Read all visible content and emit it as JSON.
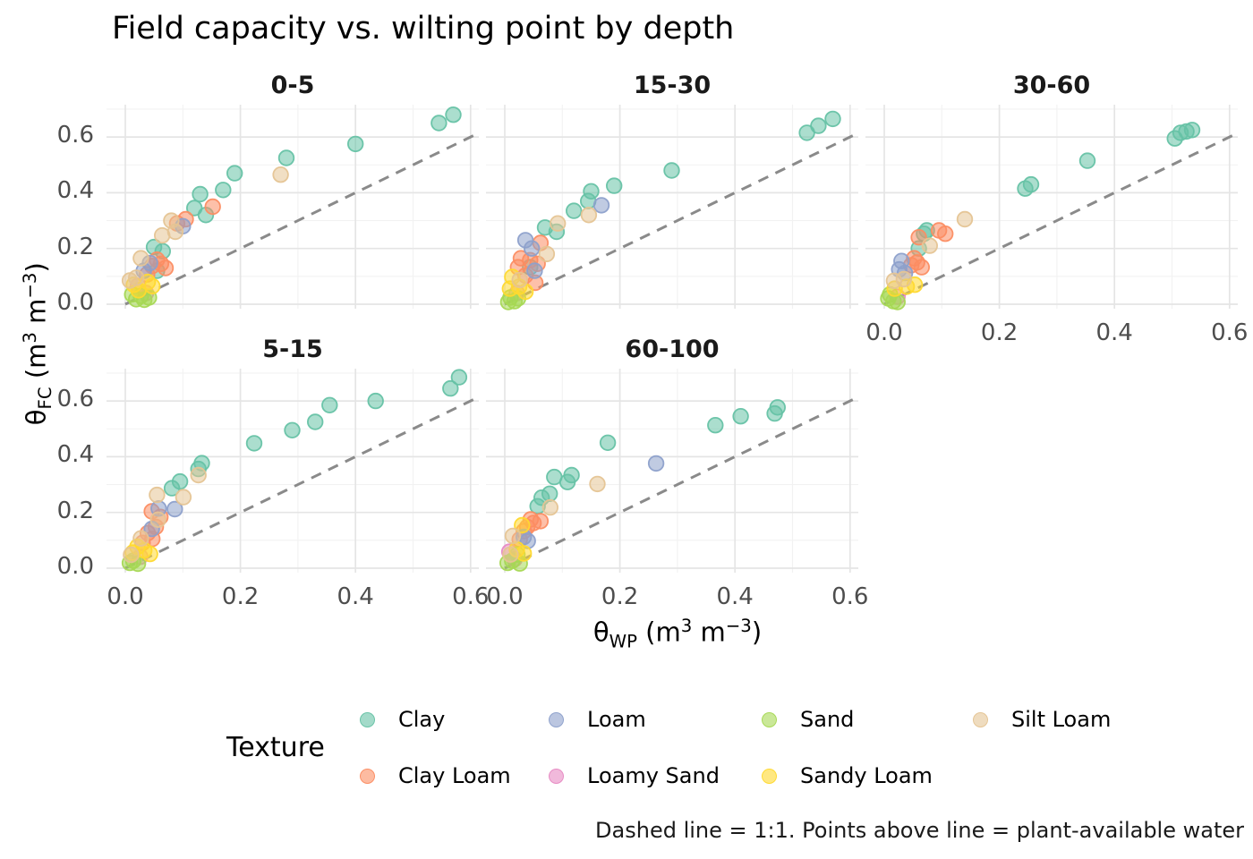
{
  "title": "Field capacity vs. wilting point by depth",
  "caption": "Dashed line = 1:1. Points above line = plant-available water",
  "axes": {
    "x": {
      "symbol": "θ",
      "subscript": "WP",
      "unit_pre": " (m",
      "sup1": "3",
      "unit_mid": " m",
      "sup2": "−3",
      "unit_post": ")",
      "tick_labels": [
        "0.0",
        "0.2",
        "0.4",
        "0.6"
      ],
      "tick_values": [
        0,
        0.2,
        0.4,
        0.6
      ]
    },
    "y": {
      "symbol": "θ",
      "subscript": "FC",
      "unit_pre": " (m",
      "sup1": "3",
      "unit_mid": " m",
      "sup2": "−3",
      "unit_post": ")",
      "tick_labels": [
        "0.0",
        "0.2",
        "0.4",
        "0.6"
      ],
      "tick_values": [
        0,
        0.2,
        0.4,
        0.6
      ]
    }
  },
  "legend": {
    "title": "Texture",
    "rows": [
      [
        "Clay",
        "Loam",
        "Sand",
        "Silt Loam"
      ],
      [
        "Clay Loam",
        "Loamy Sand",
        "Sandy Loam"
      ]
    ]
  },
  "chart_data": {
    "type": "scatter",
    "title": "Field capacity vs. wilting point by depth",
    "xlabel": "θWP (m3 m−3)",
    "ylabel": "θFC (m3 m−3)",
    "facet_variable": "depth",
    "facets": [
      "0-5",
      "15-30",
      "30-60",
      "5-15",
      "60-100"
    ],
    "xlim": [
      -0.033,
      0.614
    ],
    "ylim": [
      -0.016,
      0.715
    ],
    "grid": "on",
    "legend_position": "bottom",
    "reference_line": {
      "type": "identity 1:1",
      "style": "dashed",
      "color": "#8a8a8a"
    },
    "point_alpha": 0.55,
    "textures": [
      {
        "name": "Clay",
        "color": "#66C2A5"
      },
      {
        "name": "Clay Loam",
        "color": "#FC8D62"
      },
      {
        "name": "Loam",
        "color": "#8DA0CB"
      },
      {
        "name": "Loamy Sand",
        "color": "#E78AC3"
      },
      {
        "name": "Sand",
        "color": "#A6D854"
      },
      {
        "name": "Sandy Loam",
        "color": "#FFD92F"
      },
      {
        "name": "Silt Loam",
        "color": "#E5C494"
      }
    ],
    "panels": [
      {
        "label": "0-5",
        "points": {
          "Clay": [
            [
              0.57,
              0.68
            ],
            [
              0.545,
              0.65
            ],
            [
              0.4,
              0.575
            ],
            [
              0.28,
              0.525
            ],
            [
              0.19,
              0.47
            ],
            [
              0.17,
              0.41
            ],
            [
              0.13,
              0.395
            ],
            [
              0.12,
              0.345
            ],
            [
              0.14,
              0.32
            ],
            [
              0.05,
              0.205
            ],
            [
              0.065,
              0.19
            ],
            [
              0.055,
              0.12
            ]
          ],
          "Clay Loam": [
            [
              0.152,
              0.35
            ],
            [
              0.105,
              0.305
            ],
            [
              0.09,
              0.29
            ],
            [
              0.055,
              0.16
            ],
            [
              0.062,
              0.145
            ],
            [
              0.047,
              0.137
            ],
            [
              0.07,
              0.13
            ],
            [
              0.038,
              0.107
            ]
          ],
          "Loam": [
            [
              0.1,
              0.28
            ],
            [
              0.043,
              0.148
            ],
            [
              0.032,
              0.12
            ]
          ],
          "Loamy Sand": [
            [
              0.022,
              0.066
            ],
            [
              0.036,
              0.04
            ]
          ],
          "Sand": [
            [
              0.027,
              0.03
            ],
            [
              0.019,
              0.018
            ],
            [
              0.012,
              0.035
            ],
            [
              0.033,
              0.016
            ],
            [
              0.041,
              0.024
            ]
          ],
          "Sandy Loam": [
            [
              0.039,
              0.08
            ],
            [
              0.023,
              0.05
            ],
            [
              0.047,
              0.065
            ],
            [
              0.015,
              0.07
            ]
          ],
          "Silt Loam": [
            [
              0.27,
              0.465
            ],
            [
              0.08,
              0.3
            ],
            [
              0.087,
              0.26
            ],
            [
              0.064,
              0.247
            ],
            [
              0.027,
              0.165
            ],
            [
              0.019,
              0.095
            ],
            [
              0.008,
              0.085
            ]
          ]
        }
      },
      {
        "label": "15-30",
        "points": {
          "Clay": [
            [
              0.57,
              0.665
            ],
            [
              0.545,
              0.64
            ],
            [
              0.525,
              0.615
            ],
            [
              0.29,
              0.48
            ],
            [
              0.19,
              0.425
            ],
            [
              0.15,
              0.405
            ],
            [
              0.145,
              0.37
            ],
            [
              0.12,
              0.335
            ],
            [
              0.07,
              0.275
            ],
            [
              0.09,
              0.26
            ],
            [
              0.044,
              0.133
            ]
          ],
          "Clay Loam": [
            [
              0.062,
              0.22
            ],
            [
              0.028,
              0.165
            ],
            [
              0.044,
              0.158
            ],
            [
              0.057,
              0.145
            ],
            [
              0.036,
              0.103
            ],
            [
              0.053,
              0.077
            ],
            [
              0.023,
              0.133
            ]
          ],
          "Loam": [
            [
              0.168,
              0.355
            ],
            [
              0.036,
              0.23
            ],
            [
              0.047,
              0.2
            ],
            [
              0.052,
              0.12
            ]
          ],
          "Loamy Sand": [
            [
              0.021,
              0.04
            ]
          ],
          "Sand": [
            [
              0.01,
              0.024
            ],
            [
              0.017,
              0.011
            ],
            [
              0.006,
              0.008
            ],
            [
              0.023,
              0.021
            ]
          ],
          "Sandy Loam": [
            [
              0.013,
              0.098
            ],
            [
              0.025,
              0.063
            ],
            [
              0.036,
              0.045
            ],
            [
              0.009,
              0.056
            ]
          ],
          "Silt Loam": [
            [
              0.146,
              0.32
            ],
            [
              0.092,
              0.29
            ],
            [
              0.073,
              0.18
            ],
            [
              0.026,
              0.087
            ]
          ]
        }
      },
      {
        "label": "30-60",
        "points": {
          "Clay": [
            [
              0.535,
              0.625
            ],
            [
              0.525,
              0.62
            ],
            [
              0.515,
              0.615
            ],
            [
              0.505,
              0.595
            ],
            [
              0.353,
              0.515
            ],
            [
              0.255,
              0.43
            ],
            [
              0.245,
              0.415
            ],
            [
              0.074,
              0.265
            ],
            [
              0.069,
              0.253
            ],
            [
              0.06,
              0.2
            ]
          ],
          "Clay Loam": [
            [
              0.095,
              0.265
            ],
            [
              0.106,
              0.253
            ],
            [
              0.06,
              0.24
            ],
            [
              0.052,
              0.165
            ],
            [
              0.057,
              0.15
            ],
            [
              0.065,
              0.133
            ],
            [
              0.047,
              0.14
            ]
          ],
          "Loam": [
            [
              0.03,
              0.155
            ],
            [
              0.026,
              0.125
            ],
            [
              0.036,
              0.112
            ]
          ],
          "Loamy Sand": [
            [
              0.023,
              0.027
            ]
          ],
          "Sand": [
            [
              0.01,
              0.035
            ],
            [
              0.007,
              0.021
            ],
            [
              0.016,
              0.011
            ],
            [
              0.023,
              0.008
            ]
          ],
          "Sandy Loam": [
            [
              0.039,
              0.063
            ],
            [
              0.053,
              0.07
            ],
            [
              0.018,
              0.056
            ]
          ],
          "Silt Loam": [
            [
              0.14,
              0.305
            ],
            [
              0.079,
              0.21
            ],
            [
              0.034,
              0.09
            ],
            [
              0.017,
              0.084
            ]
          ]
        }
      },
      {
        "label": "5-15",
        "points": {
          "Clay": [
            [
              0.58,
              0.685
            ],
            [
              0.565,
              0.645
            ],
            [
              0.435,
              0.6
            ],
            [
              0.355,
              0.585
            ],
            [
              0.33,
              0.525
            ],
            [
              0.29,
              0.495
            ],
            [
              0.224,
              0.448
            ],
            [
              0.133,
              0.377
            ],
            [
              0.127,
              0.356
            ],
            [
              0.095,
              0.311
            ],
            [
              0.081,
              0.287
            ]
          ],
          "Clay Loam": [
            [
              0.046,
              0.204
            ],
            [
              0.061,
              0.184
            ],
            [
              0.053,
              0.148
            ],
            [
              0.039,
              0.126
            ],
            [
              0.047,
              0.105
            ],
            [
              0.03,
              0.091
            ]
          ],
          "Loam": [
            [
              0.086,
              0.212
            ],
            [
              0.058,
              0.214
            ],
            [
              0.046,
              0.141
            ]
          ],
          "Loamy Sand": [
            [
              0.026,
              0.041
            ]
          ],
          "Sand": [
            [
              0.014,
              0.027
            ],
            [
              0.008,
              0.019
            ],
            [
              0.022,
              0.016
            ]
          ],
          "Sandy Loam": [
            [
              0.021,
              0.077
            ],
            [
              0.033,
              0.064
            ],
            [
              0.013,
              0.056
            ],
            [
              0.043,
              0.051
            ]
          ],
          "Silt Loam": [
            [
              0.127,
              0.334
            ],
            [
              0.101,
              0.255
            ],
            [
              0.055,
              0.263
            ],
            [
              0.057,
              0.174
            ],
            [
              0.027,
              0.107
            ],
            [
              0.01,
              0.048
            ]
          ]
        }
      },
      {
        "label": "60-100",
        "points": {
          "Clay": [
            [
              0.474,
              0.577
            ],
            [
              0.469,
              0.555
            ],
            [
              0.41,
              0.545
            ],
            [
              0.366,
              0.513
            ],
            [
              0.179,
              0.45
            ],
            [
              0.116,
              0.334
            ],
            [
              0.109,
              0.309
            ],
            [
              0.086,
              0.327
            ],
            [
              0.078,
              0.267
            ],
            [
              0.064,
              0.253
            ],
            [
              0.057,
              0.222
            ]
          ],
          "Clay Loam": [
            [
              0.045,
              0.175
            ],
            [
              0.05,
              0.162
            ],
            [
              0.062,
              0.169
            ],
            [
              0.039,
              0.148
            ],
            [
              0.033,
              0.133
            ],
            [
              0.026,
              0.103
            ]
          ],
          "Loam": [
            [
              0.263,
              0.376
            ],
            [
              0.033,
              0.112
            ],
            [
              0.04,
              0.098
            ]
          ],
          "Loamy Sand": [
            [
              0.008,
              0.059
            ],
            [
              0.017,
              0.032
            ]
          ],
          "Sand": [
            [
              0.022,
              0.049
            ],
            [
              0.013,
              0.027
            ],
            [
              0.005,
              0.019
            ],
            [
              0.026,
              0.017
            ]
          ],
          "Sandy Loam": [
            [
              0.03,
              0.154
            ],
            [
              0.021,
              0.067
            ],
            [
              0.033,
              0.053
            ]
          ],
          "Silt Loam": [
            [
              0.161,
              0.302
            ],
            [
              0.079,
              0.218
            ],
            [
              0.014,
              0.116
            ],
            [
              0.01,
              0.049
            ]
          ]
        }
      }
    ]
  }
}
